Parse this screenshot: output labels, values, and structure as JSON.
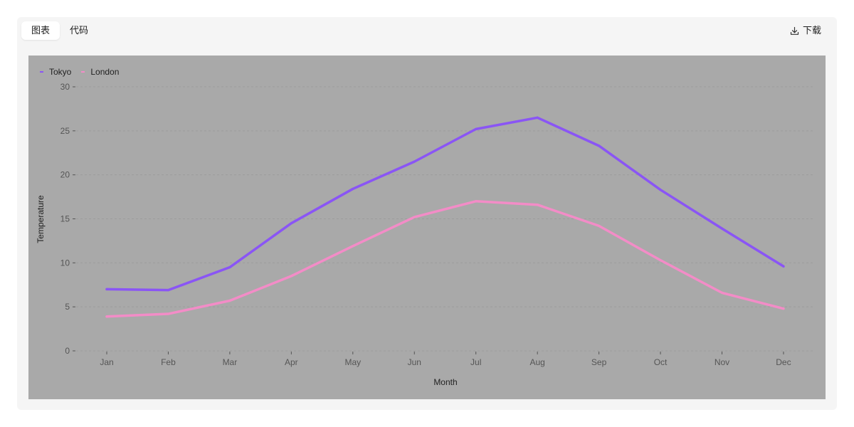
{
  "toolbar": {
    "tabs": [
      {
        "label": "图表",
        "active": true
      },
      {
        "label": "代码",
        "active": false
      }
    ],
    "download_label": "下载"
  },
  "colors": {
    "background": "#a9a9a9",
    "tokyo": "#8a55f5",
    "london": "#f38cc7"
  },
  "chart_data": {
    "type": "line",
    "categories": [
      "Jan",
      "Feb",
      "Mar",
      "Apr",
      "May",
      "Jun",
      "Jul",
      "Aug",
      "Sep",
      "Oct",
      "Nov",
      "Dec"
    ],
    "series": [
      {
        "name": "Tokyo",
        "color": "#8a55f5",
        "values": [
          7.0,
          6.9,
          9.5,
          14.5,
          18.4,
          21.5,
          25.2,
          26.5,
          23.3,
          18.3,
          13.9,
          9.6
        ]
      },
      {
        "name": "London",
        "color": "#f38cc7",
        "values": [
          3.9,
          4.2,
          5.7,
          8.5,
          11.9,
          15.2,
          17.0,
          16.6,
          14.2,
          10.3,
          6.6,
          4.8
        ]
      }
    ],
    "xlabel": "Month",
    "ylabel": "Temperature",
    "ylim": [
      0,
      30
    ],
    "yticks": [
      0,
      5,
      10,
      15,
      20,
      25,
      30
    ],
    "grid": true,
    "legend": "top-left"
  }
}
